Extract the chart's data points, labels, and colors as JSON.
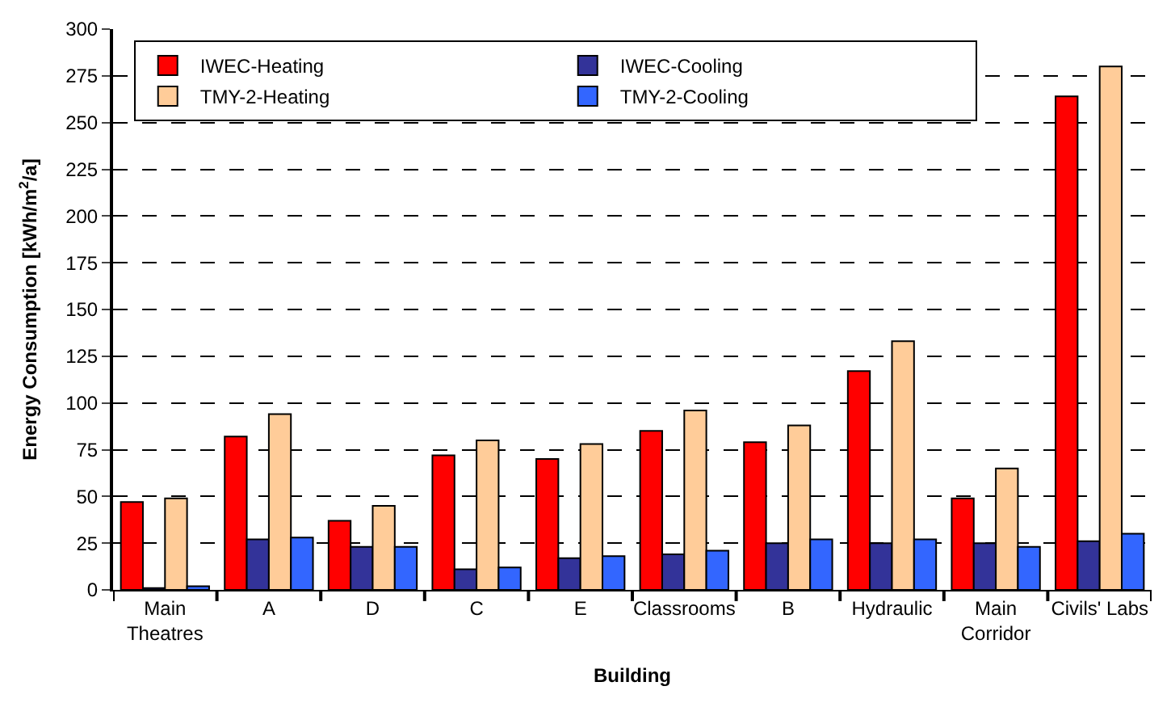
{
  "chart_data": {
    "type": "bar",
    "xlabel": "Building",
    "ylabel": "Energy Consumption [kWh/m$^{2}$/a]",
    "categories": [
      "Main Theatres",
      "A",
      "D",
      "C",
      "E",
      "Classrooms",
      "B",
      "Hydraulic",
      "Main Corridor",
      "Civils' Labs"
    ],
    "series": [
      {
        "name": "IWEC-Heating",
        "color": "#ff0000",
        "values": [
          47,
          82,
          37,
          72,
          70,
          85,
          79,
          117,
          49,
          264
        ]
      },
      {
        "name": "IWEC-Cooling",
        "color": "#333399",
        "values": [
          1,
          27,
          23,
          11,
          17,
          19,
          25,
          25,
          25,
          26
        ]
      },
      {
        "name": "TMY-2-Heating",
        "color": "#ffcc99",
        "values": [
          49,
          94,
          45,
          80,
          78,
          96,
          88,
          133,
          65,
          280
        ]
      },
      {
        "name": "TMY-2-Cooling",
        "color": "#3366ff",
        "values": [
          2,
          28,
          23,
          12,
          18,
          21,
          27,
          27,
          23,
          30
        ]
      }
    ],
    "ylim": [
      0,
      300
    ],
    "yticks": [
      0,
      25,
      50,
      75,
      100,
      125,
      150,
      175,
      200,
      225,
      250,
      275,
      300
    ],
    "grid": "y",
    "legend": "top left"
  }
}
